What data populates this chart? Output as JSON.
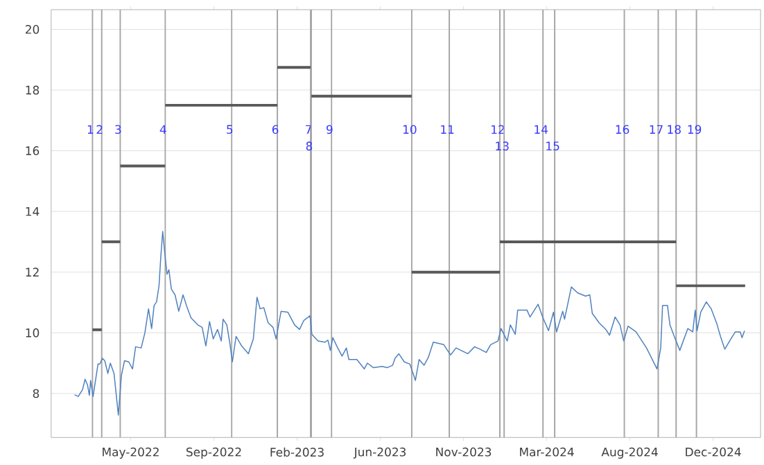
{
  "chart_data": {
    "type": "line",
    "grid": "y",
    "xlim": [
      "2022-01-06",
      "2025-03-02"
    ],
    "ylim": [
      6.55,
      20.65
    ],
    "xticks": [
      {
        "value": "2022-05-15",
        "label": "May-2022"
      },
      {
        "value": "2022-09-27",
        "label": "Sep-2022"
      },
      {
        "value": "2023-02-09",
        "label": "Feb-2023"
      },
      {
        "value": "2023-06-24",
        "label": "Jun-2023"
      },
      {
        "value": "2023-11-06",
        "label": "Nov-2023"
      },
      {
        "value": "2024-03-20",
        "label": "Mar-2024"
      },
      {
        "value": "2024-08-02",
        "label": "Aug-2024"
      },
      {
        "value": "2024-12-15",
        "label": "Dec-2024"
      }
    ],
    "yticks": [
      8,
      10,
      12,
      14,
      16,
      18,
      20
    ],
    "series": [
      {
        "color": "#4f81bd",
        "x": [
          "2022-02-13",
          "2022-02-19",
          "2022-02-26",
          "2022-03-02",
          "2022-03-06",
          "2022-03-09",
          "2022-03-11",
          "2022-03-15",
          "2022-03-23",
          "2022-03-26",
          "2022-03-30",
          "2022-04-03",
          "2022-04-08",
          "2022-04-12",
          "2022-04-18",
          "2022-04-25",
          "2022-04-30",
          "2022-05-05",
          "2022-05-12",
          "2022-05-18",
          "2022-05-23",
          "2022-06-01",
          "2022-06-07",
          "2022-06-13",
          "2022-06-18",
          "2022-06-22",
          "2022-06-26",
          "2022-06-30",
          "2022-07-03",
          "2022-07-06",
          "2022-07-09",
          "2022-07-13",
          "2022-07-16",
          "2022-07-20",
          "2022-07-26",
          "2022-08-01",
          "2022-08-08",
          "2022-08-14",
          "2022-08-21",
          "2022-09-01",
          "2022-09-08",
          "2022-09-14",
          "2022-09-20",
          "2022-09-26",
          "2022-10-03",
          "2022-10-09",
          "2022-10-12",
          "2022-10-18",
          "2022-10-23",
          "2022-10-27",
          "2022-11-02",
          "2022-11-11",
          "2022-11-22",
          "2022-11-30",
          "2022-12-06",
          "2022-12-11",
          "2022-12-17",
          "2022-12-24",
          "2023-01-01",
          "2023-01-06",
          "2023-01-14",
          "2023-01-25",
          "2023-02-05",
          "2023-02-13",
          "2023-02-20",
          "2023-03-02",
          "2023-03-05",
          "2023-03-15",
          "2023-03-26",
          "2023-03-31",
          "2023-04-04",
          "2023-04-08",
          "2023-04-15",
          "2023-04-23",
          "2023-04-30",
          "2023-05-04",
          "2023-05-17",
          "2023-05-29",
          "2023-06-03",
          "2023-06-13",
          "2023-06-27",
          "2023-07-05",
          "2023-07-14",
          "2023-07-18",
          "2023-07-24",
          "2023-08-02",
          "2023-08-11",
          "2023-08-20",
          "2023-08-26",
          "2023-09-03",
          "2023-09-10",
          "2023-09-18",
          "2023-10-05",
          "2023-10-16",
          "2023-10-25",
          "2023-11-13",
          "2023-11-24",
          "2023-12-03",
          "2023-12-13",
          "2023-12-20",
          "2024-01-01",
          "2024-01-06",
          "2024-01-16",
          "2024-01-21",
          "2024-01-29",
          "2024-02-02",
          "2024-02-17",
          "2024-02-22",
          "2024-03-06",
          "2024-03-14",
          "2024-03-23",
          "2024-03-31",
          "2024-04-05",
          "2024-04-15",
          "2024-04-18",
          "2024-04-29",
          "2024-05-09",
          "2024-05-22",
          "2024-05-29",
          "2024-06-02",
          "2024-06-13",
          "2024-06-24",
          "2024-06-30",
          "2024-07-09",
          "2024-07-17",
          "2024-07-23",
          "2024-07-30",
          "2024-08-12",
          "2024-08-29",
          "2024-09-15",
          "2024-09-21",
          "2024-09-24",
          "2024-10-02",
          "2024-10-06",
          "2024-10-13",
          "2024-10-22",
          "2024-11-04",
          "2024-11-12",
          "2024-11-16",
          "2024-11-19",
          "2024-11-25",
          "2024-12-04",
          "2024-12-12",
          "2024-12-21",
          "2024-12-27",
          "2025-01-03",
          "2025-01-13",
          "2025-01-20",
          "2025-01-28",
          "2025-01-31",
          "2025-02-04"
        ],
        "values": [
          7.96,
          7.9,
          8.13,
          8.47,
          8.28,
          7.94,
          8.43,
          7.9,
          8.97,
          8.97,
          9.16,
          9.08,
          8.66,
          9.0,
          8.66,
          7.29,
          8.59,
          9.08,
          9.04,
          8.81,
          9.54,
          9.5,
          9.99,
          10.79,
          10.14,
          10.9,
          11.02,
          11.55,
          12.54,
          13.34,
          12.69,
          11.93,
          12.08,
          11.44,
          11.25,
          10.71,
          11.25,
          10.87,
          10.49,
          10.26,
          10.18,
          9.57,
          10.37,
          9.8,
          10.11,
          9.73,
          10.45,
          10.26,
          9.65,
          9.04,
          9.88,
          9.57,
          9.31,
          9.8,
          11.17,
          10.79,
          10.83,
          10.33,
          10.18,
          9.8,
          10.71,
          10.68,
          10.26,
          10.11,
          10.41,
          10.56,
          9.95,
          9.73,
          9.69,
          9.76,
          9.42,
          9.84,
          9.54,
          9.23,
          9.5,
          9.12,
          9.12,
          8.81,
          9.0,
          8.85,
          8.89,
          8.85,
          8.93,
          9.16,
          9.31,
          9.04,
          8.97,
          8.43,
          9.12,
          8.93,
          9.19,
          9.69,
          9.61,
          9.27,
          9.5,
          9.31,
          9.54,
          9.46,
          9.35,
          9.61,
          9.73,
          10.14,
          9.73,
          10.26,
          9.95,
          10.75,
          10.75,
          10.52,
          10.94,
          10.49,
          10.07,
          10.68,
          10.03,
          10.71,
          10.45,
          11.51,
          11.32,
          11.21,
          11.25,
          10.64,
          10.33,
          10.11,
          9.92,
          10.52,
          10.26,
          9.73,
          10.22,
          10.03,
          9.5,
          8.81,
          9.5,
          10.9,
          10.9,
          10.26,
          9.88,
          9.42,
          10.14,
          10.03,
          10.75,
          10.07,
          10.68,
          11.02,
          10.79,
          10.3,
          9.88,
          9.46,
          9.8,
          10.03,
          10.03,
          9.84,
          10.07
        ]
      },
      {
        "color": "#595959",
        "x": [
          "2022-03-14",
          "2022-03-29"
        ],
        "values": [
          10.1,
          10.1
        ]
      },
      {
        "color": "#595959",
        "x": [
          "2022-03-29",
          "2022-04-28"
        ],
        "values": [
          13.0,
          13.0
        ]
      },
      {
        "color": "#595959",
        "x": [
          "2022-04-28",
          "2022-07-10"
        ],
        "values": [
          15.5,
          15.5
        ]
      },
      {
        "color": "#595959",
        "x": [
          "2022-07-10",
          "2023-01-08"
        ],
        "values": [
          17.5,
          17.5
        ]
      },
      {
        "color": "#595959",
        "x": [
          "2023-01-08",
          "2023-03-03"
        ],
        "values": [
          18.75,
          18.75
        ]
      },
      {
        "color": "#595959",
        "x": [
          "2023-03-04",
          "2023-08-14"
        ],
        "values": [
          17.8,
          17.8
        ]
      },
      {
        "color": "#595959",
        "x": [
          "2023-08-14",
          "2024-01-04"
        ],
        "values": [
          12.0,
          12.0
        ]
      },
      {
        "color": "#595959",
        "x": [
          "2024-01-04",
          "2024-10-16"
        ],
        "values": [
          13.0,
          13.0
        ]
      },
      {
        "color": "#595959",
        "x": [
          "2024-10-16",
          "2025-02-05"
        ],
        "values": [
          11.55,
          11.55
        ]
      }
    ],
    "ref_lines": [
      {
        "axis": "x",
        "value": "2022-03-14",
        "label": "1",
        "color": "#a6a6a6"
      },
      {
        "axis": "x",
        "value": "2022-03-29",
        "label": "2",
        "color": "#a6a6a6"
      },
      {
        "axis": "x",
        "value": "2022-04-28",
        "label": "3",
        "color": "#a6a6a6"
      },
      {
        "axis": "x",
        "value": "2022-07-10",
        "label": "4",
        "color": "#a6a6a6"
      },
      {
        "axis": "x",
        "value": "2022-10-26",
        "label": "5",
        "color": "#a6a6a6"
      },
      {
        "axis": "x",
        "value": "2023-01-08",
        "label": "6",
        "color": "#a6a6a6"
      },
      {
        "axis": "x",
        "value": "2023-03-03",
        "label": "7",
        "color": "#a6a6a6"
      },
      {
        "axis": "x",
        "value": "2023-03-04",
        "label": "8",
        "color": "#a6a6a6"
      },
      {
        "axis": "x",
        "value": "2023-04-06",
        "label": "9",
        "color": "#a6a6a6"
      },
      {
        "axis": "x",
        "value": "2023-08-14",
        "label": "10",
        "color": "#a6a6a6"
      },
      {
        "axis": "x",
        "value": "2023-10-14",
        "label": "11",
        "color": "#a6a6a6"
      },
      {
        "axis": "x",
        "value": "2024-01-04",
        "label": "12",
        "color": "#a6a6a6"
      },
      {
        "axis": "x",
        "value": "2024-01-11",
        "label": "13",
        "color": "#a6a6a6"
      },
      {
        "axis": "x",
        "value": "2024-03-14",
        "label": "14",
        "color": "#a6a6a6"
      },
      {
        "axis": "x",
        "value": "2024-04-02",
        "label": "15",
        "color": "#a6a6a6"
      },
      {
        "axis": "x",
        "value": "2024-07-24",
        "label": "16",
        "color": "#a6a6a6"
      },
      {
        "axis": "x",
        "value": "2024-09-17",
        "label": "17",
        "color": "#a6a6a6"
      },
      {
        "axis": "x",
        "value": "2024-10-16",
        "label": "18",
        "color": "#a6a6a6"
      },
      {
        "axis": "x",
        "value": "2024-11-18",
        "label": "19",
        "color": "#a6a6a6"
      }
    ]
  }
}
